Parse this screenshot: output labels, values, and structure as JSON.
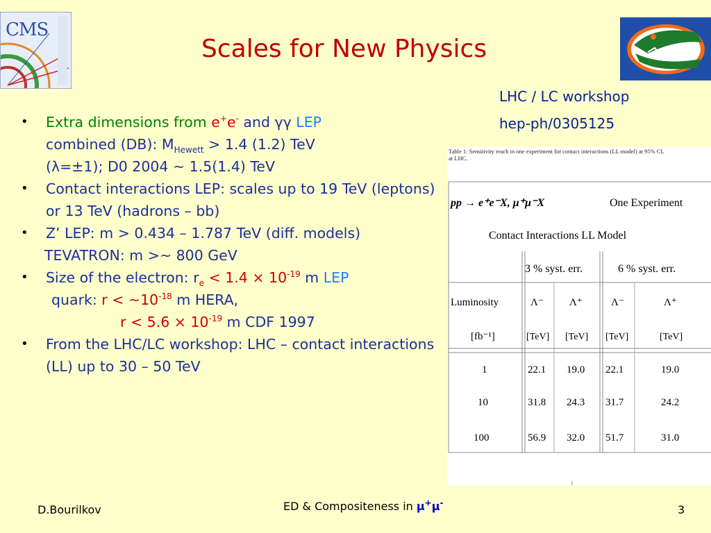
{
  "title": "Scales for New Physics",
  "reference": {
    "line1": "LHC / LC workshop",
    "line2": "hep-ph/0305125"
  },
  "logos": {
    "left_text": "CMS",
    "left_icon": "cms-logo-icon",
    "right_icon": "gator-logo-icon"
  },
  "bullets": {
    "b1": {
      "t1": "Extra dimensions from ",
      "t2": "e",
      "t3": "+",
      "t4": "e",
      "t5": "-",
      "t6": " and γγ ",
      "t7": "LEP",
      "t8": "combined (DB): M",
      "t9": "Hewett",
      "t10": " > 1.4 (1.2) TeV",
      "t11": "(λ=±1);   D0 2004 ~ 1.5(1.4) TeV"
    },
    "b2": {
      "text": "Contact interactions LEP:  scales up to 19 TeV (leptons) or 13 TeV (hadrons – bb)"
    },
    "b3": {
      "text": "Z’  LEP: m > 0.434 – 1.787 TeV (diff. models)",
      "sub": "TEVATRON: m >~ 800 GeV"
    },
    "b4": {
      "t1": "Size of the electron: r",
      "t2": "e",
      "t3": " < 1.4 × 10",
      "t4": "-19",
      "t5": " m ",
      "t6": "LEP",
      "q1": "quark: ",
      "q2": "r < ~10",
      "q3": "-18",
      "q4": " m HERA,",
      "c1": "r < 5.6 × 10",
      "c2": "-19",
      "c3": " m CDF 1997"
    },
    "b5": {
      "text": "From the LHC/LC workshop:  LHC – contact interactions (LL) up to 30 – 50 TeV"
    }
  },
  "table": {
    "caption": "Table 1: Sensitivity reach in one experiment for contact interactions (LL model) at 95% CL at LHC.",
    "process": "pp → e⁺e⁻X,  μ⁺μ⁻X",
    "experiment": "One Experiment",
    "model": "Contact Interactions LL Model",
    "syst1": "3 % syst. err.",
    "syst2": "6 % syst. err.",
    "lum_label": "Luminosity",
    "lum_unit": "[fb⁻¹]",
    "lambda_minus": "Λ⁻",
    "lambda_plus": "Λ⁺",
    "tev": "[TeV]",
    "rows": [
      {
        "lum": "1",
        "v1": "22.1",
        "v2": "19.0",
        "v3": "22.1",
        "v4": "19.0"
      },
      {
        "lum": "10",
        "v1": "31.8",
        "v2": "24.3",
        "v3": "31.7",
        "v4": "24.2"
      },
      {
        "lum": "100",
        "v1": "56.9",
        "v2": "32.0",
        "v3": "51.7",
        "v4": "31.0"
      }
    ],
    "page_number": "1"
  },
  "footer": {
    "author": "D.Bourilkov",
    "center_prefix": "ED & Compositeness in ",
    "center_mu1": "μ",
    "center_plus": "+",
    "center_mu2": "μ",
    "center_minus": "-",
    "page": "3"
  }
}
